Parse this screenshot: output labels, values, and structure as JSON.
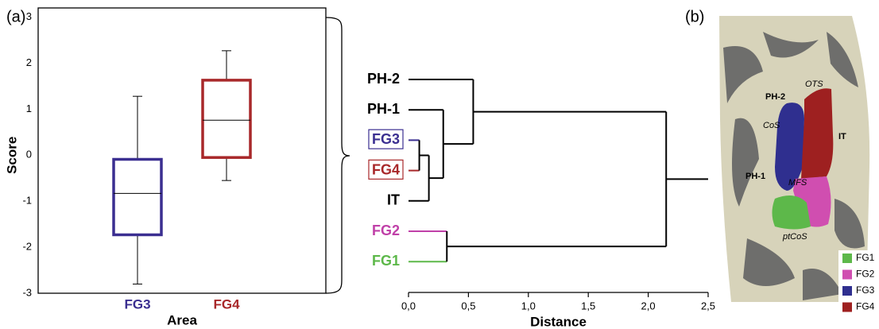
{
  "panel_labels": [
    "(a)",
    "(b)"
  ],
  "chart_data": [
    {
      "type": "box",
      "categories": [
        "FG3",
        "FG4"
      ],
      "colors": [
        "#3b2f91",
        "#a8282a"
      ],
      "boxes": [
        {
          "whisker_low": -2.8,
          "q1": -1.73,
          "median": -0.83,
          "q3": -0.09,
          "whisker_high": 1.28
        },
        {
          "whisker_low": -0.55,
          "q1": -0.05,
          "median": 0.76,
          "q3": 1.63,
          "whisker_high": 2.27
        }
      ],
      "xlabel": "Area",
      "ylabel": "Score",
      "ylim": [
        -3,
        3.2
      ],
      "yticks": [
        -3,
        -2,
        -1,
        0,
        1,
        2,
        3
      ]
    },
    {
      "type": "dendrogram",
      "xlabel": "Distance",
      "xlim": [
        0,
        2.5
      ],
      "xticks": [
        {
          "value": 0,
          "label": "0,0"
        },
        {
          "value": 0.5,
          "label": "0,5"
        },
        {
          "value": 1,
          "label": "1,0"
        },
        {
          "value": 1.5,
          "label": "1,5"
        },
        {
          "value": 2,
          "label": "2,0"
        },
        {
          "value": 2.5,
          "label": "2,5"
        }
      ],
      "leaves": [
        {
          "label": "PH-2",
          "color": "#000000",
          "boxed": false
        },
        {
          "label": "PH-1",
          "color": "#000000",
          "boxed": false
        },
        {
          "label": "FG3",
          "color": "#3b2f91",
          "boxed": true
        },
        {
          "label": "FG4",
          "color": "#a8282a",
          "boxed": true
        },
        {
          "label": "IT",
          "color": "#000000",
          "boxed": false
        },
        {
          "label": "FG2",
          "color": "#c040a8",
          "boxed": false
        },
        {
          "label": "FG1",
          "color": "#5db84a",
          "boxed": false
        }
      ],
      "merges": [
        {
          "join": [
            2,
            3
          ],
          "distance": 0.09
        },
        {
          "join": [
            7,
            4
          ],
          "distance": 0.17
        },
        {
          "join": [
            1,
            8
          ],
          "distance": 0.29
        },
        {
          "join": [
            0,
            9
          ],
          "distance": 0.54
        },
        {
          "join": [
            5,
            6
          ],
          "distance": 0.32
        },
        {
          "join": [
            10,
            11
          ],
          "distance": 2.15
        }
      ]
    }
  ],
  "brain_image": {
    "labels": [
      "PH-2",
      "OTS",
      "CoS",
      "IT",
      "PH-1",
      "MFS",
      "ptCoS"
    ],
    "legend": [
      {
        "name": "FG1",
        "color": "#5db84a"
      },
      {
        "name": "FG2",
        "color": "#d04eb0"
      },
      {
        "name": "FG3",
        "color": "#2f2f8f"
      },
      {
        "name": "FG4",
        "color": "#9e2020"
      }
    ]
  }
}
